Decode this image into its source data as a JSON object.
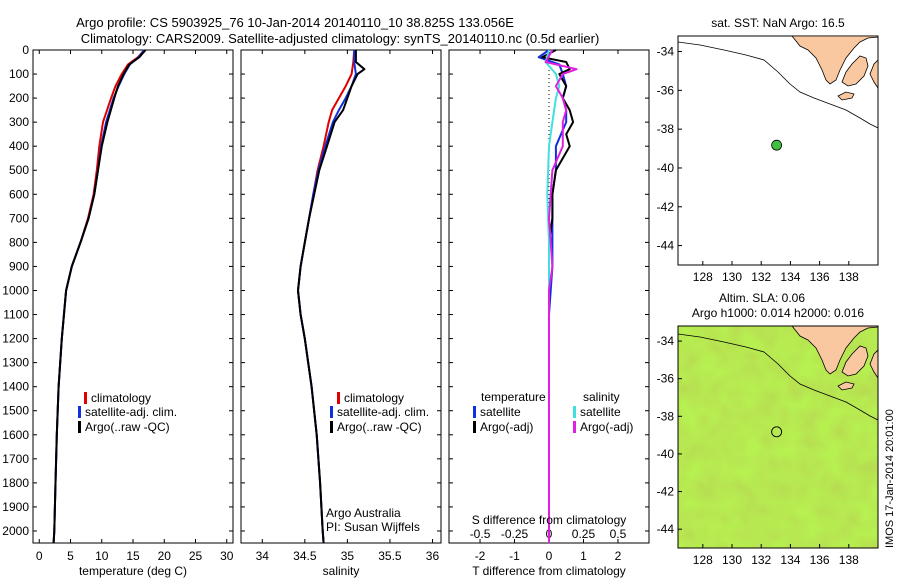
{
  "header": {
    "title_line1": "Argo profile: CS 5903925_76 10-Jan-2014 20140110_10 38.825S 133.056E",
    "title_line2": "Climatology: CARS2009. Satellite-adjusted climatology: synTS_20140110.nc (0.5d earlier)"
  },
  "colors": {
    "climatology": "#e00000",
    "satellite": "#1030e0",
    "argo": "#000000",
    "salinity_satellite": "#40e0e0",
    "salinity_argo": "#e020e0",
    "land": "#fac8a0",
    "sla_field": "#a8e030",
    "float_marker": "#40c040"
  },
  "chart_data": [
    {
      "id": "temperature",
      "type": "line",
      "xlabel": "temperature (deg C)",
      "ylabel": "",
      "xlim": [
        -1,
        31
      ],
      "ylim": [
        2050,
        0
      ],
      "xticks": [
        0,
        5,
        10,
        15,
        20,
        25,
        30
      ],
      "yticks": [
        0,
        100,
        200,
        300,
        400,
        500,
        600,
        700,
        800,
        900,
        1000,
        1100,
        1200,
        1300,
        1400,
        1500,
        1600,
        1700,
        1800,
        1900,
        2000
      ],
      "legend": [
        "climatology",
        "satellite-adj. clim.",
        "Argo(..raw -QC)"
      ],
      "legend_position": "lower-center",
      "series": [
        {
          "name": "climatology",
          "color": "#e00000",
          "depth": [
            0,
            30,
            60,
            100,
            150,
            200,
            300,
            400,
            500,
            600,
            700,
            800,
            900,
            1000,
            1200,
            1400,
            1600,
            1800,
            2000,
            2050
          ],
          "values": [
            16.8,
            15.8,
            14.2,
            13.2,
            12.2,
            11.5,
            10.2,
            9.6,
            9.2,
            8.7,
            7.8,
            6.6,
            5.2,
            4.3,
            3.6,
            3.1,
            2.8,
            2.6,
            2.4,
            2.3
          ]
        },
        {
          "name": "satellite-adj. clim.",
          "color": "#1030e0",
          "depth": [
            0,
            30,
            60,
            100,
            150,
            200,
            300,
            400,
            500,
            600,
            700,
            800,
            900,
            1000,
            1200,
            1400,
            1600,
            1800,
            2000,
            2050
          ],
          "values": [
            16.8,
            15.9,
            14.5,
            13.6,
            12.7,
            11.9,
            10.7,
            9.9,
            9.4,
            8.8,
            7.9,
            6.6,
            5.2,
            4.3,
            3.6,
            3.1,
            2.8,
            2.6,
            2.4,
            2.3
          ]
        },
        {
          "name": "Argo(..raw -QC)",
          "color": "#000000",
          "depth": [
            0,
            30,
            60,
            100,
            150,
            200,
            300,
            400,
            500,
            600,
            700,
            800,
            900,
            1000,
            1200,
            1400,
            1600,
            1800,
            2000,
            2050
          ],
          "values": [
            17.0,
            16.0,
            14.4,
            13.5,
            12.6,
            12.0,
            10.9,
            10.0,
            9.4,
            8.8,
            7.9,
            6.6,
            5.2,
            4.3,
            3.6,
            3.1,
            2.8,
            2.6,
            2.4,
            2.3
          ]
        }
      ]
    },
    {
      "id": "salinity",
      "type": "line",
      "xlabel": "salinity",
      "ylabel": "",
      "xlim": [
        33.75,
        36.1
      ],
      "ylim": [
        2050,
        0
      ],
      "xticks": [
        34,
        34.5,
        35,
        35.5,
        36
      ],
      "legend": [
        "climatology",
        "satellite-adj. clim.",
        "Argo(..raw -QC)"
      ],
      "legend_position": "lower-center",
      "annotation_line1": "Argo Australia",
      "annotation_line2": "PI: Susan Wijffels",
      "series": [
        {
          "name": "climatology",
          "color": "#e00000",
          "depth": [
            0,
            50,
            100,
            150,
            200,
            250,
            300,
            400,
            500,
            600,
            700,
            800,
            900,
            1000,
            1100,
            1200,
            1400,
            1600,
            1800,
            2000,
            2050
          ],
          "values": [
            35.08,
            35.07,
            35.05,
            34.98,
            34.9,
            34.82,
            34.78,
            34.72,
            34.65,
            34.6,
            34.55,
            34.5,
            34.45,
            34.42,
            34.45,
            34.5,
            34.58,
            34.64,
            34.68,
            34.71,
            34.72
          ]
        },
        {
          "name": "satellite-adj. clim.",
          "color": "#1030e0",
          "depth": [
            0,
            50,
            100,
            150,
            200,
            250,
            300,
            400,
            500,
            600,
            700,
            800,
            900,
            1000,
            1100,
            1200,
            1400,
            1600,
            1800,
            2000,
            2050
          ],
          "values": [
            35.08,
            35.08,
            35.1,
            35.05,
            34.98,
            34.9,
            34.83,
            34.74,
            34.66,
            34.6,
            34.55,
            34.5,
            34.45,
            34.42,
            34.45,
            34.5,
            34.58,
            34.64,
            34.68,
            34.71,
            34.72
          ]
        },
        {
          "name": "Argo(..raw -QC)",
          "color": "#000000",
          "depth": [
            0,
            50,
            80,
            100,
            150,
            200,
            250,
            300,
            400,
            500,
            600,
            700,
            800,
            900,
            1000,
            1100,
            1200,
            1400,
            1600,
            1800,
            2000,
            2050
          ],
          "values": [
            35.1,
            35.1,
            35.2,
            35.12,
            35.05,
            35.0,
            34.95,
            34.85,
            34.76,
            34.67,
            34.61,
            34.55,
            34.5,
            34.45,
            34.42,
            34.45,
            34.5,
            34.58,
            34.64,
            34.68,
            34.71,
            34.72
          ]
        }
      ]
    },
    {
      "id": "difference",
      "type": "line",
      "xlabel": "T difference from climatology",
      "xlabel_top": "S difference from climatology",
      "ylabel": "",
      "xlim": [
        -2.9,
        2.9
      ],
      "ylim": [
        2050,
        0
      ],
      "xticks": [
        -2,
        -1,
        0,
        1,
        2
      ],
      "xticks_top_labels": [
        "-0.5",
        "-0.25",
        "0",
        "0.25",
        "0.5"
      ],
      "xticks_top_positions": [
        -2,
        -1,
        0,
        1,
        2
      ],
      "legend_group1_title": "temperature",
      "legend_group2_title": "salinity",
      "legend": [
        "satellite",
        "Argo(-adj)",
        "satellite",
        "Argo(-adj)"
      ],
      "legend_position": "lower-center",
      "series": [
        {
          "name": "satellite",
          "group": "temperature",
          "color": "#1030e0",
          "depth": [
            0,
            30,
            60,
            100,
            150,
            200,
            250,
            300,
            400,
            500,
            600,
            700,
            800,
            900,
            1000,
            1100,
            1200,
            1400,
            1600,
            1800,
            2000,
            2050
          ],
          "values": [
            0.0,
            -0.3,
            0.3,
            0.4,
            0.5,
            0.4,
            0.5,
            0.5,
            0.2,
            0.2,
            0.1,
            0.1,
            0.1,
            0.1,
            0.05,
            0.0,
            0.0,
            0.0,
            0.0,
            0.0,
            0.0,
            0.0
          ]
        },
        {
          "name": "Argo(-adj)",
          "group": "temperature",
          "color": "#000000",
          "depth": [
            0,
            30,
            50,
            80,
            100,
            150,
            200,
            250,
            300,
            350,
            400,
            500,
            600,
            700,
            800,
            900,
            1000,
            1100,
            1200,
            1400,
            1600,
            1800,
            2000,
            2050
          ],
          "values": [
            0.2,
            -0.2,
            0.5,
            0.6,
            0.3,
            0.5,
            0.4,
            0.6,
            0.7,
            0.5,
            0.6,
            0.2,
            0.1,
            0.1,
            0.0,
            0.0,
            0.0,
            0.0,
            0.0,
            0.0,
            0.0,
            0.0,
            0.0,
            0.0
          ]
        },
        {
          "name": "satellite",
          "group": "salinity",
          "color": "#40e0e0",
          "depth": [
            0,
            50,
            100,
            150,
            200,
            300,
            400,
            600,
            800,
            1000,
            1200,
            1400,
            1600,
            1800,
            2000,
            2050
          ],
          "values": [
            0.0,
            -0.1,
            0.2,
            0.3,
            0.2,
            0.1,
            0.0,
            -0.05,
            0.0,
            0.0,
            0.0,
            0.0,
            0.0,
            0.0,
            0.0,
            0.0
          ]
        },
        {
          "name": "Argo(-adj)",
          "group": "salinity",
          "color": "#e020e0",
          "depth": [
            0,
            50,
            80,
            100,
            150,
            200,
            250,
            300,
            400,
            500,
            700,
            900,
            1000,
            1200,
            1400,
            1600,
            1800,
            2000,
            2050
          ],
          "values": [
            0.1,
            -0.1,
            0.8,
            0.4,
            0.2,
            0.4,
            0.5,
            0.4,
            0.4,
            0.1,
            0.0,
            0.1,
            0.0,
            0.0,
            0.0,
            0.0,
            0.0,
            0.0,
            0.0
          ]
        }
      ]
    },
    {
      "id": "sst_map",
      "type": "scatter",
      "title": "sat. SST: NaN Argo: 16.5",
      "xlim": [
        126.3,
        140
      ],
      "ylim": [
        -45,
        -33.2
      ],
      "xticks": [
        128,
        130,
        132,
        134,
        136,
        138
      ],
      "yticks": [
        -34,
        -36,
        -38,
        -40,
        -42,
        -44
      ],
      "points": [
        {
          "lon": 133.056,
          "lat": -38.825
        }
      ]
    },
    {
      "id": "sla_map",
      "type": "heatmap",
      "title_line1": "Altim. SLA: 0.06",
      "title_line2": "Argo h1000: 0.014 h2000: 0.016",
      "xlim": [
        126.3,
        140
      ],
      "ylim": [
        -45,
        -33.2
      ],
      "xticks": [
        128,
        130,
        132,
        134,
        136,
        138
      ],
      "yticks": [
        -34,
        -36,
        -38,
        -40,
        -42,
        -44
      ],
      "points": [
        {
          "lon": 133.056,
          "lat": -38.825
        }
      ]
    }
  ],
  "footer": {
    "watermark": "IMOS 17-Jan-2014 20:01:00"
  }
}
